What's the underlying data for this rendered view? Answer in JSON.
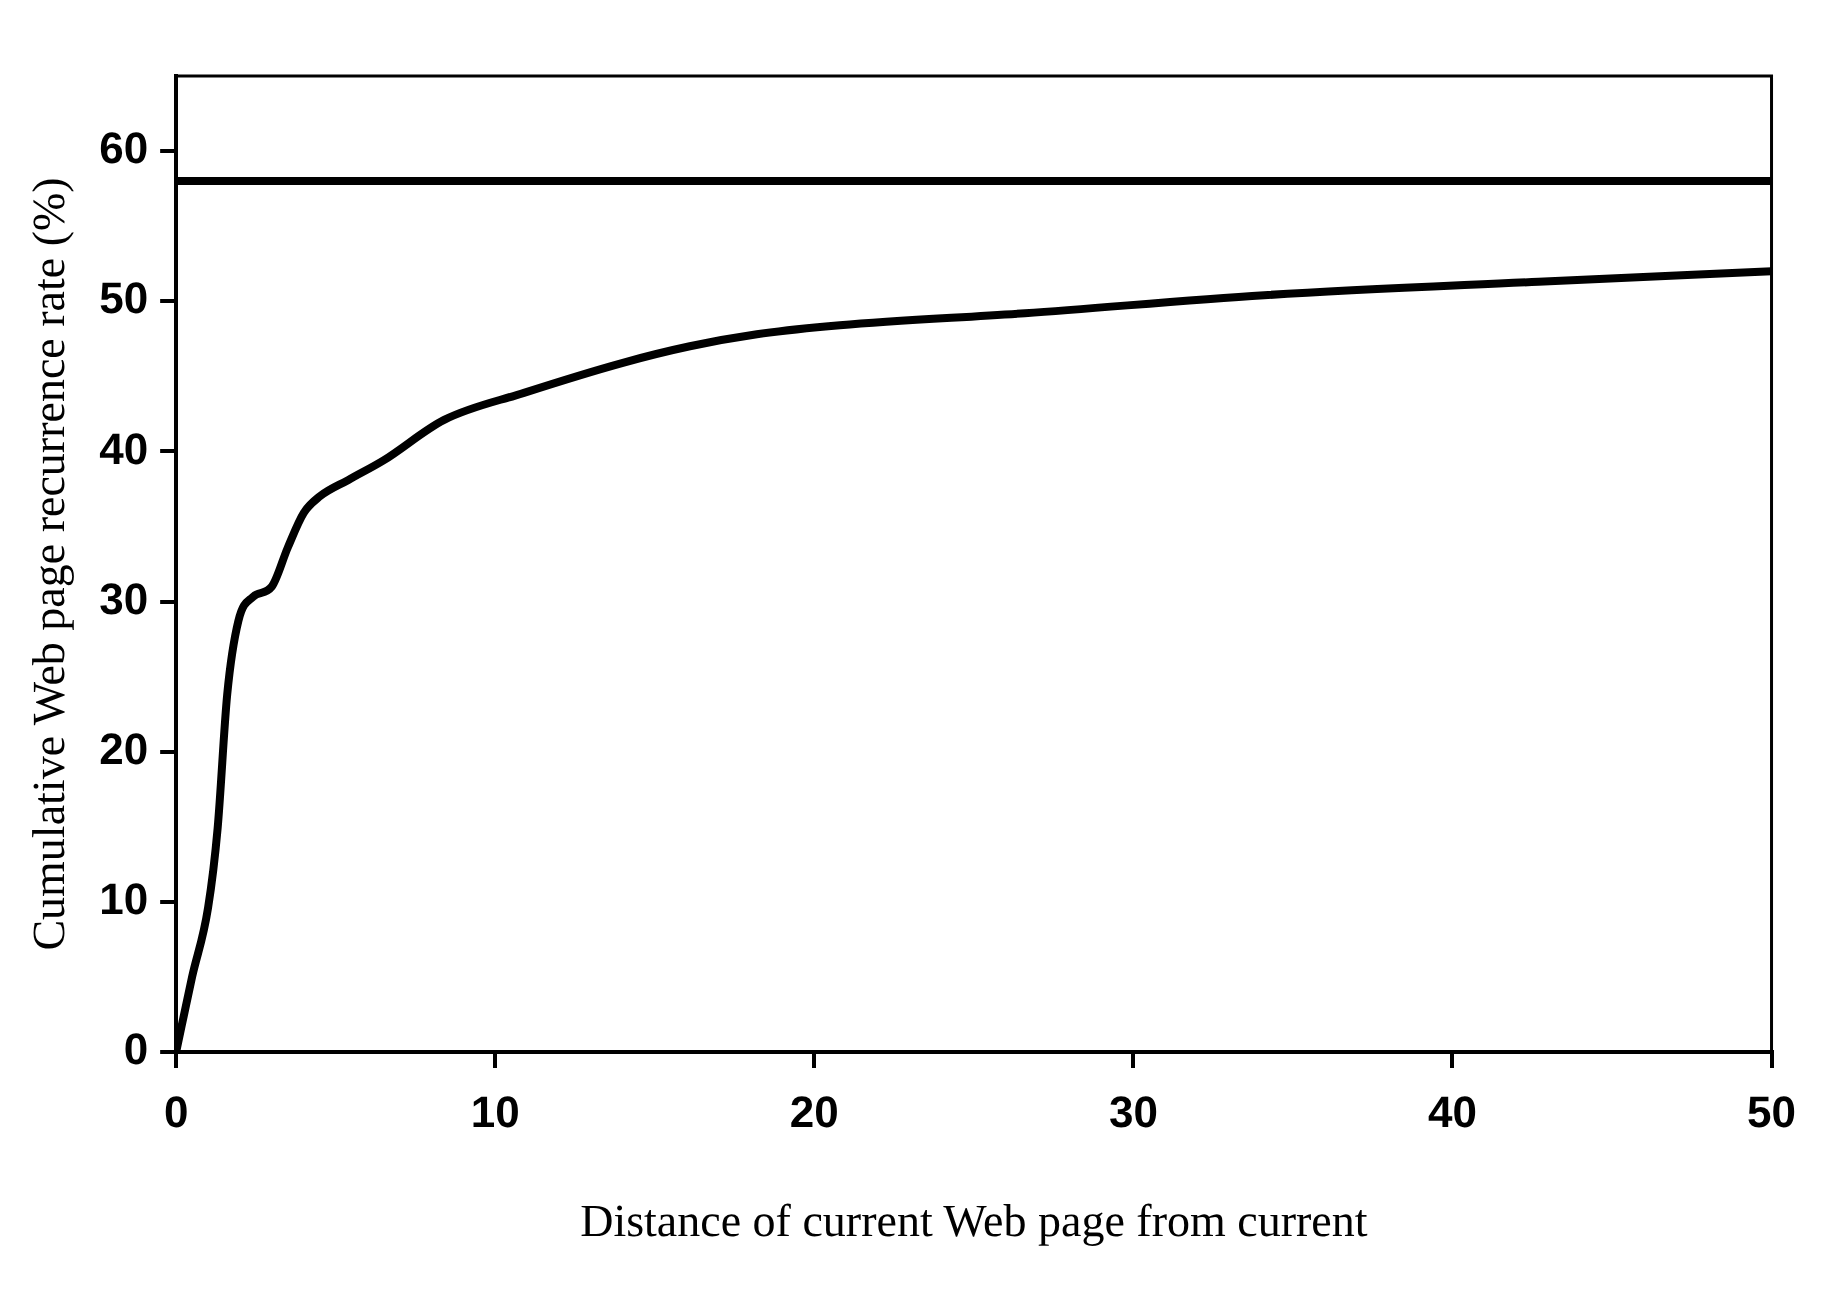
{
  "chart_data": {
    "type": "line",
    "xlabel": "Distance of current Web page from current",
    "ylabel": "Cumulative Web page recurrence rate (%)",
    "xlim": [
      0,
      50
    ],
    "xticks": [
      0,
      10,
      20,
      30,
      40,
      50
    ],
    "ylim": [
      0,
      65
    ],
    "yticks": [
      0,
      10,
      20,
      30,
      40,
      50,
      60
    ],
    "grid": false,
    "legend": false,
    "marker": "none",
    "line_style": "solid",
    "series": [
      {
        "color": "#000000",
        "x": [
          0,
          0.5,
          1,
          1.3,
          1.6,
          1.95,
          2.4,
          3,
          3.5,
          4,
          4.5,
          5.4,
          6.5,
          8.4,
          10.9,
          14,
          16.1,
          18.2,
          20.8,
          26.6,
          34.1,
          42.7,
          50
        ],
        "values": [
          0,
          5,
          9.6,
          14.9,
          23.8,
          28.7,
          30.3,
          31,
          33.6,
          35.9,
          37,
          38.1,
          39.4,
          42.1,
          43.9,
          45.9,
          47,
          47.8,
          48.4,
          49.2,
          50.4,
          51.3,
          52
        ]
      }
    ],
    "ref_lines": [
      {
        "axis": "y",
        "value": 58,
        "color": "#000000"
      }
    ]
  }
}
